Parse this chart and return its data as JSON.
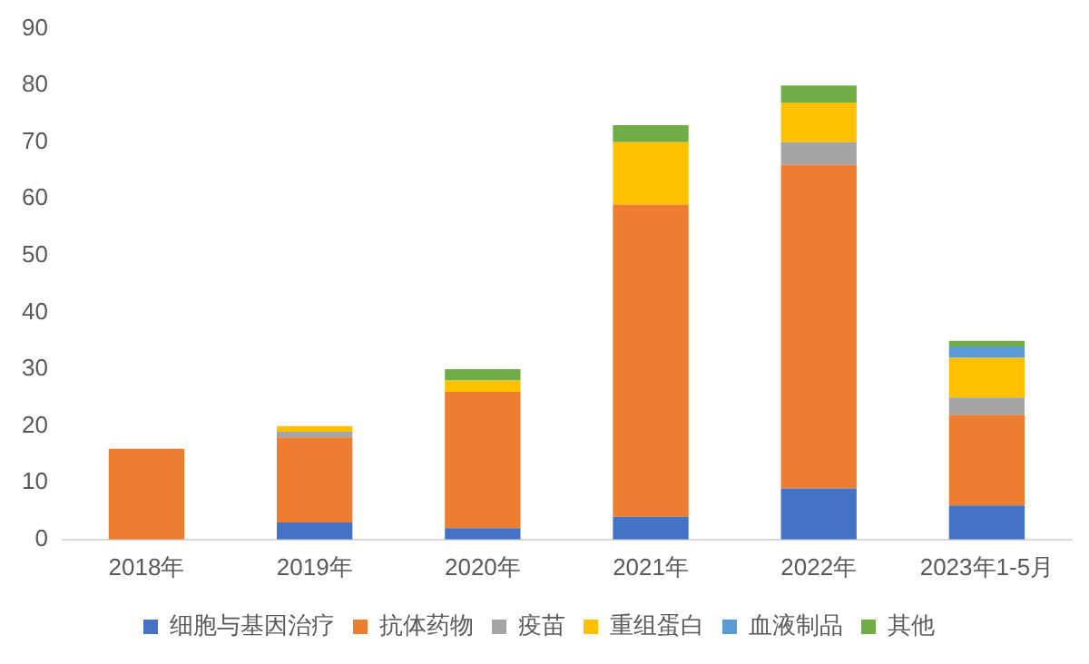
{
  "chart_data": {
    "type": "bar",
    "stacked": true,
    "categories": [
      "2018年",
      "2019年",
      "2020年",
      "2021年",
      "2022年",
      "2023年1-5月"
    ],
    "series": [
      {
        "name": "细胞与基因治疗",
        "color": "#4472c4",
        "values": [
          0,
          3,
          2,
          4,
          9,
          6
        ]
      },
      {
        "name": "抗体药物",
        "color": "#ed7d31",
        "values": [
          16,
          15,
          24,
          55,
          57,
          16
        ]
      },
      {
        "name": "疫苗",
        "color": "#a5a5a5",
        "values": [
          0,
          1,
          0,
          0,
          4,
          3
        ]
      },
      {
        "name": "重组蛋白",
        "color": "#ffc000",
        "values": [
          0,
          1,
          2,
          11,
          7,
          7
        ]
      },
      {
        "name": "血液制品",
        "color": "#5b9bd5",
        "values": [
          0,
          0,
          0,
          0,
          0,
          2
        ]
      },
      {
        "name": "其他",
        "color": "#70ad47",
        "values": [
          0,
          0,
          2,
          3,
          3,
          1
        ]
      }
    ],
    "ylim": [
      0,
      90
    ],
    "yticks": [
      0,
      10,
      20,
      30,
      40,
      50,
      60,
      70,
      80,
      90
    ],
    "grid": false,
    "legend": "bottom"
  }
}
